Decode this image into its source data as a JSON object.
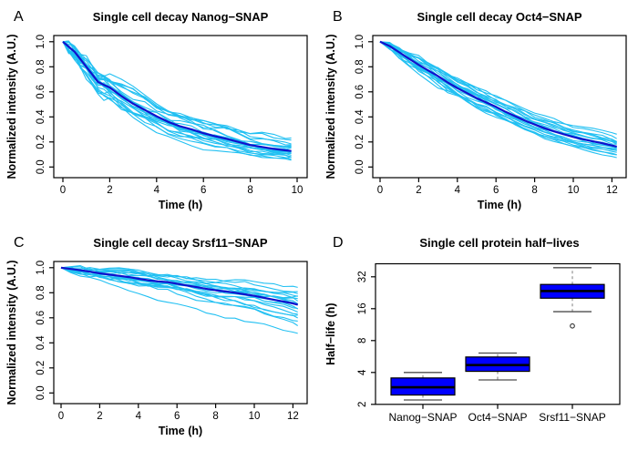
{
  "figure": {
    "background": "#ffffff"
  },
  "colors": {
    "cell_trace": "#22C0F2",
    "mean_trace": "#1111CC",
    "box_fill": "#0000FF",
    "box_border": "#000000",
    "median": "#000000",
    "whisker_line": "#7d7d7d",
    "whisker_cap": "#4d4d4d",
    "outlier": "#333333",
    "axis": "#000000"
  },
  "chart_data": {
    "type": "multi-panel",
    "layout": "2x2 grid, white background, black full plot boxes, no gridlines, no legend",
    "panels": [
      {
        "type": "line",
        "letter": "A",
        "title": "Single cell decay Nanog−SNAP",
        "xlabel": "Time (h)",
        "ylabel": "Normalized intensity (A.U.)",
        "xticks": [
          0,
          2,
          4,
          6,
          8,
          10
        ],
        "yticks": [
          0.0,
          0.2,
          0.4,
          0.6,
          0.8,
          1.0
        ],
        "ytick_labels": [
          "0.0",
          "0.2",
          "0.4",
          "0.6",
          "0.8",
          "1.0"
        ],
        "xlim": [
          0,
          10.4
        ],
        "ylim": [
          0,
          1.05
        ],
        "description": "~22 single-cell decay traces (light blue) with population mean (dark blue)",
        "mean": {
          "x": [
            0,
            0.25,
            0.5,
            0.75,
            1,
            1.25,
            1.5,
            1.75,
            2,
            2.5,
            3,
            3.5,
            4,
            4.5,
            5,
            5.5,
            6,
            6.5,
            7,
            7.5,
            8,
            8.5,
            9,
            9.5,
            9.75
          ],
          "y": [
            1,
            0.96,
            0.92,
            0.86,
            0.8,
            0.74,
            0.68,
            0.655,
            0.635,
            0.565,
            0.505,
            0.455,
            0.405,
            0.36,
            0.325,
            0.3,
            0.27,
            0.245,
            0.225,
            0.2,
            0.175,
            0.16,
            0.145,
            0.133,
            0.128
          ]
        },
        "noise_amp": 0.05,
        "clamp_top": 1.005,
        "cells": [
          {
            "r": 0.7,
            "seed": 11
          },
          {
            "r": 0.76,
            "seed": 47
          },
          {
            "r": 0.8,
            "seed": 83
          },
          {
            "r": 0.84,
            "seed": 7
          },
          {
            "r": 0.88,
            "seed": 29
          },
          {
            "r": 0.92,
            "seed": 53
          },
          {
            "r": 0.95,
            "seed": 71
          },
          {
            "r": 0.98,
            "seed": 19
          },
          {
            "r": 1.0,
            "seed": 37
          },
          {
            "r": 1.02,
            "seed": 61
          },
          {
            "r": 1.05,
            "seed": 5
          },
          {
            "r": 1.08,
            "seed": 43
          },
          {
            "r": 1.11,
            "seed": 89
          },
          {
            "r": 1.14,
            "seed": 13
          },
          {
            "r": 1.18,
            "seed": 59
          },
          {
            "r": 1.22,
            "seed": 23
          },
          {
            "r": 1.26,
            "seed": 97
          },
          {
            "r": 1.31,
            "seed": 31
          },
          {
            "r": 0.86,
            "seed": 67
          },
          {
            "r": 0.96,
            "seed": 3
          },
          {
            "r": 1.06,
            "seed": 79
          },
          {
            "r": 1.16,
            "seed": 41
          }
        ]
      },
      {
        "type": "line",
        "letter": "B",
        "title": "Single cell decay Oct4−SNAP",
        "xlabel": "Time (h)",
        "ylabel": "Normalized intensity (A.U.)",
        "xticks": [
          0,
          2,
          4,
          6,
          8,
          10,
          12
        ],
        "yticks": [
          0.0,
          0.2,
          0.4,
          0.6,
          0.8,
          1.0
        ],
        "ytick_labels": [
          "0.0",
          "0.2",
          "0.4",
          "0.6",
          "0.8",
          "1.0"
        ],
        "xlim": [
          0,
          12.7
        ],
        "ylim": [
          0,
          1.05
        ],
        "description": "~20 single-cell decay traces (light blue) with population mean (dark blue)",
        "mean": {
          "x": [
            0,
            0.5,
            1,
            1.5,
            2,
            2.5,
            3,
            3.5,
            4,
            4.5,
            5,
            5.5,
            6,
            6.5,
            7,
            7.5,
            8,
            8.5,
            9,
            9.5,
            10,
            10.5,
            11,
            11.5,
            12,
            12.25
          ],
          "y": [
            1,
            0.965,
            0.915,
            0.865,
            0.815,
            0.77,
            0.725,
            0.675,
            0.63,
            0.59,
            0.55,
            0.515,
            0.48,
            0.44,
            0.405,
            0.37,
            0.34,
            0.31,
            0.285,
            0.262,
            0.24,
            0.222,
            0.205,
            0.19,
            0.172,
            0.163
          ]
        },
        "noise_amp": 0.028,
        "clamp_top": 1.005,
        "cells": [
          {
            "r": 0.75,
            "seed": 102
          },
          {
            "r": 0.8,
            "seed": 7
          },
          {
            "r": 0.84,
            "seed": 215
          },
          {
            "r": 0.88,
            "seed": 56
          },
          {
            "r": 0.92,
            "seed": 91
          },
          {
            "r": 0.95,
            "seed": 33
          },
          {
            "r": 0.98,
            "seed": 148
          },
          {
            "r": 1.0,
            "seed": 12
          },
          {
            "r": 1.02,
            "seed": 77
          },
          {
            "r": 1.05,
            "seed": 190
          },
          {
            "r": 1.08,
            "seed": 25
          },
          {
            "r": 1.12,
            "seed": 63
          },
          {
            "r": 1.16,
            "seed": 139
          },
          {
            "r": 1.2,
            "seed": 84
          },
          {
            "r": 1.25,
            "seed": 171
          },
          {
            "r": 1.3,
            "seed": 49
          },
          {
            "r": 0.85,
            "seed": 118
          },
          {
            "r": 0.93,
            "seed": 201
          },
          {
            "r": 1.07,
            "seed": 38
          },
          {
            "r": 1.18,
            "seed": 160
          }
        ]
      },
      {
        "type": "line",
        "letter": "C",
        "title": "Single cell decay Srsf11−SNAP",
        "xlabel": "Time (h)",
        "ylabel": "Normalized intensity (A.U.)",
        "xticks": [
          0,
          2,
          4,
          6,
          8,
          10,
          12
        ],
        "yticks": [
          0.0,
          0.2,
          0.4,
          0.6,
          0.8,
          1.0
        ],
        "ytick_labels": [
          "0.0",
          "0.2",
          "0.4",
          "0.6",
          "0.8",
          "1.0"
        ],
        "xlim": [
          0,
          12.7
        ],
        "ylim": [
          0,
          1.05
        ],
        "description": "~20 slowly-decaying single-cell traces; one outlier falls to ~0.47 by 12 h",
        "mean": {
          "x": [
            0,
            0.5,
            1,
            1.5,
            2,
            2.5,
            3,
            3.5,
            4,
            4.5,
            5,
            5.5,
            6,
            6.5,
            7,
            7.5,
            8,
            8.5,
            9,
            9.5,
            10,
            10.5,
            11,
            11.5,
            12,
            12.25
          ],
          "y": [
            1,
            0.99,
            0.98,
            0.968,
            0.955,
            0.945,
            0.935,
            0.925,
            0.912,
            0.9,
            0.89,
            0.885,
            0.872,
            0.858,
            0.845,
            0.832,
            0.82,
            0.81,
            0.8,
            0.788,
            0.775,
            0.76,
            0.745,
            0.73,
            0.715,
            0.705
          ]
        },
        "noise_amp": 0.02,
        "clamp_top": 1.03,
        "cells": [
          {
            "r": 0.47,
            "seed": 9
          },
          {
            "r": 0.56,
            "seed": 87
          },
          {
            "r": 0.63,
            "seed": 142
          },
          {
            "r": 0.7,
            "seed": 31
          },
          {
            "r": 0.76,
            "seed": 66
          },
          {
            "r": 0.82,
            "seed": 203
          },
          {
            "r": 0.88,
            "seed": 54
          },
          {
            "r": 0.93,
            "seed": 121
          },
          {
            "r": 0.98,
            "seed": 18
          },
          {
            "r": 1.0,
            "seed": 175
          },
          {
            "r": 1.04,
            "seed": 92
          },
          {
            "r": 1.08,
            "seed": 40
          },
          {
            "r": 1.13,
            "seed": 157
          },
          {
            "r": 1.18,
            "seed": 73
          },
          {
            "r": 1.24,
            "seed": 28
          },
          {
            "r": 1.32,
            "seed": 184
          },
          {
            "r": 1.45,
            "seed": 110
          },
          {
            "r": 1.58,
            "seed": 61
          },
          {
            "r": 1.7,
            "seed": 135
          },
          {
            "r": 2.16,
            "seed": 46
          }
        ]
      },
      {
        "type": "box",
        "letter": "D",
        "title": "Single cell protein half−lives",
        "xlabel": "",
        "ylabel": "Half−life (h)",
        "yscale": "log2",
        "yticks": [
          2,
          4,
          8,
          16,
          32
        ],
        "ytick_labels": [
          "2",
          "4",
          "8",
          "16",
          "32"
        ],
        "ylim": [
          2,
          43
        ],
        "categories": [
          "Nanog−SNAP",
          "Oct4−SNAP",
          "Srsf11−SNAP"
        ],
        "stats": [
          {
            "low": 2.2,
            "q1": 2.45,
            "median": 2.9,
            "q3": 3.55,
            "high": 4.0,
            "outliers": []
          },
          {
            "low": 3.4,
            "q1": 4.1,
            "median": 4.7,
            "q3": 5.6,
            "high": 6.1,
            "outliers": []
          },
          {
            "low": 15.0,
            "q1": 20.1,
            "median": 23.5,
            "q3": 27.1,
            "high": 39.0,
            "outliers": [
              11
            ]
          }
        ]
      }
    ]
  }
}
